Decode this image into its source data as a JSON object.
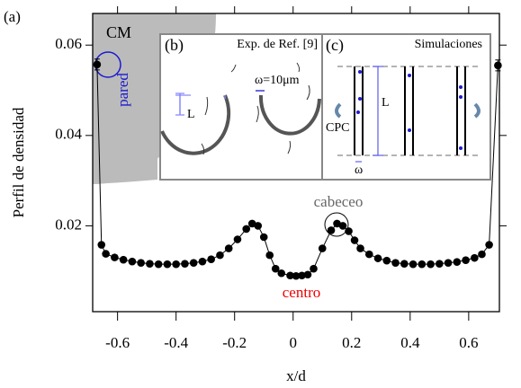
{
  "chart_data": {
    "type": "line",
    "xlabel": "x/d",
    "ylabel": "Perfil de densidad",
    "x": [
      -0.67,
      -0.655,
      -0.64,
      -0.61,
      -0.58,
      -0.55,
      -0.52,
      -0.49,
      -0.46,
      -0.43,
      -0.4,
      -0.37,
      -0.34,
      -0.31,
      -0.28,
      -0.25,
      -0.22,
      -0.19,
      -0.16,
      -0.14,
      -0.12,
      -0.1,
      -0.08,
      -0.06,
      -0.04,
      -0.01,
      0.01,
      0.03,
      0.05,
      0.07,
      0.1,
      0.13,
      0.15,
      0.17,
      0.19,
      0.21,
      0.23,
      0.26,
      0.29,
      0.32,
      0.35,
      0.38,
      0.41,
      0.44,
      0.47,
      0.5,
      0.53,
      0.56,
      0.59,
      0.62,
      0.645,
      0.67,
      0.7
    ],
    "values": [
      0.0557,
      0.0158,
      0.0138,
      0.013,
      0.0125,
      0.0121,
      0.0118,
      0.0116,
      0.0115,
      0.0115,
      0.0115,
      0.0116,
      0.0118,
      0.0121,
      0.0126,
      0.0135,
      0.015,
      0.017,
      0.0193,
      0.0205,
      0.02,
      0.0175,
      0.0135,
      0.0105,
      0.0095,
      0.009,
      0.0089,
      0.009,
      0.0092,
      0.0105,
      0.015,
      0.019,
      0.0205,
      0.02,
      0.0188,
      0.0168,
      0.015,
      0.0137,
      0.0128,
      0.0123,
      0.0118,
      0.0116,
      0.0115,
      0.0115,
      0.0115,
      0.0116,
      0.0118,
      0.012,
      0.0124,
      0.0129,
      0.0137,
      0.0158,
      0.0555
    ],
    "errors": [
      0.0012,
      null,
      null,
      null,
      null,
      null,
      null,
      null,
      null,
      null,
      null,
      null,
      null,
      null,
      null,
      null,
      null,
      null,
      null,
      null,
      null,
      null,
      null,
      null,
      null,
      null,
      null,
      null,
      null,
      null,
      null,
      null,
      null,
      null,
      null,
      null,
      null,
      null,
      null,
      null,
      null,
      null,
      null,
      null,
      null,
      null,
      null,
      null,
      null,
      null,
      null,
      null,
      0.0012
    ],
    "color": "#000000",
    "xlim": [
      -0.685,
      0.705
    ],
    "ylim": [
      0.001,
      0.067
    ],
    "xticks": [
      -0.6,
      -0.4,
      -0.2,
      0,
      0.2,
      0.4,
      0.6
    ],
    "yticks": [
      0.02,
      0.04,
      0.06
    ],
    "annotations": {
      "panel": "(a)",
      "cm": "CM",
      "pared": "pared",
      "cabeceo": "cabeceo",
      "centro": "centro"
    },
    "insets": [
      {
        "label": "(b)",
        "title": "Exp. de Ref. [9]",
        "width": "ω=10μm",
        "length": "L"
      },
      {
        "label": "(c)",
        "title": "Simulaciones",
        "length": "L",
        "cpc": "CPC",
        "width": "ω"
      }
    ]
  }
}
